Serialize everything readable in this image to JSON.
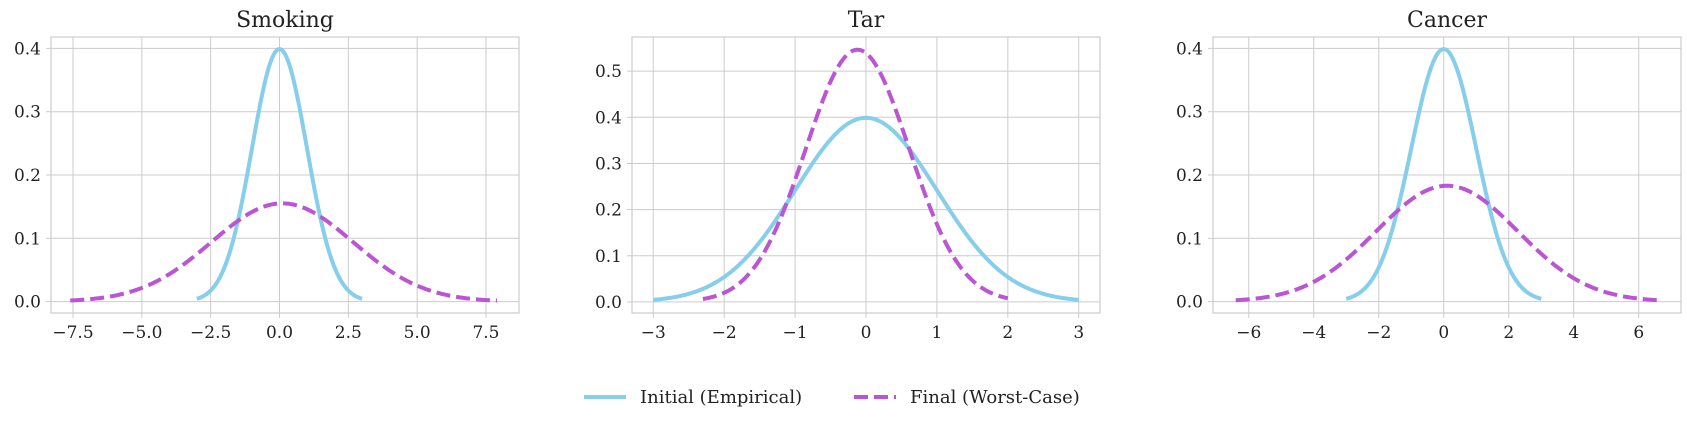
{
  "figure": {
    "legend": [
      {
        "label": "Initial (Empirical)",
        "color": "#87CEEB",
        "dash": "solid"
      },
      {
        "label": "Final (Worst-Case)",
        "color": "#BA55D3",
        "dash": "dashed"
      }
    ]
  },
  "chart_data": [
    {
      "type": "line",
      "title": "Smoking",
      "xlim": [
        -8.3,
        8.7
      ],
      "ylim": [
        -0.018,
        0.418
      ],
      "xticks": [
        -7.5,
        -5.0,
        -2.5,
        0.0,
        2.5,
        5.0,
        7.5
      ],
      "xtick_labels": [
        "−7.5",
        "−5.0",
        "−2.5",
        "0.0",
        "2.5",
        "5.0",
        "7.5"
      ],
      "yticks": [
        0.0,
        0.1,
        0.2,
        0.3,
        0.4
      ],
      "ytick_labels": [
        "0.0",
        "0.1",
        "0.2",
        "0.3",
        "0.4"
      ],
      "series": [
        {
          "name": "Initial (Empirical)",
          "dist": "normal",
          "mean": 0.0,
          "sd": 1.0,
          "x_range": [
            -3.0,
            3.0
          ]
        },
        {
          "name": "Final (Worst-Case)",
          "dist": "normal",
          "mean": 0.1,
          "sd": 2.57,
          "x_range": [
            -7.6,
            7.9
          ]
        }
      ]
    },
    {
      "type": "line",
      "title": "Tar",
      "xlim": [
        -3.3,
        3.3
      ],
      "ylim": [
        -0.024,
        0.574
      ],
      "xticks": [
        -3,
        -2,
        -1,
        0,
        1,
        2,
        3
      ],
      "xtick_labels": [
        "−3",
        "−2",
        "−1",
        "0",
        "1",
        "2",
        "3"
      ],
      "yticks": [
        0.0,
        0.1,
        0.2,
        0.3,
        0.4,
        0.5
      ],
      "ytick_labels": [
        "0.0",
        "0.1",
        "0.2",
        "0.3",
        "0.4",
        "0.5"
      ],
      "series": [
        {
          "name": "Initial (Empirical)",
          "dist": "normal",
          "mean": 0.0,
          "sd": 1.0,
          "x_range": [
            -3.0,
            3.0
          ]
        },
        {
          "name": "Final (Worst-Case)",
          "dist": "normal",
          "mean": -0.12,
          "sd": 0.73,
          "x_range": [
            -2.3,
            2.0
          ]
        }
      ]
    },
    {
      "type": "line",
      "title": "Cancer",
      "xlim": [
        -7.1,
        7.3
      ],
      "ylim": [
        -0.018,
        0.418
      ],
      "xticks": [
        -6,
        -4,
        -2,
        0,
        2,
        4,
        6
      ],
      "xtick_labels": [
        "−6",
        "−4",
        "−2",
        "0",
        "2",
        "4",
        "6"
      ],
      "yticks": [
        0.0,
        0.1,
        0.2,
        0.3,
        0.4
      ],
      "ytick_labels": [
        "0.0",
        "0.1",
        "0.2",
        "0.3",
        "0.4"
      ],
      "series": [
        {
          "name": "Initial (Empirical)",
          "dist": "normal",
          "mean": 0.0,
          "sd": 1.0,
          "x_range": [
            -3.0,
            3.0
          ]
        },
        {
          "name": "Final (Worst-Case)",
          "dist": "normal",
          "mean": 0.1,
          "sd": 2.18,
          "x_range": [
            -6.4,
            6.7
          ]
        }
      ]
    }
  ]
}
